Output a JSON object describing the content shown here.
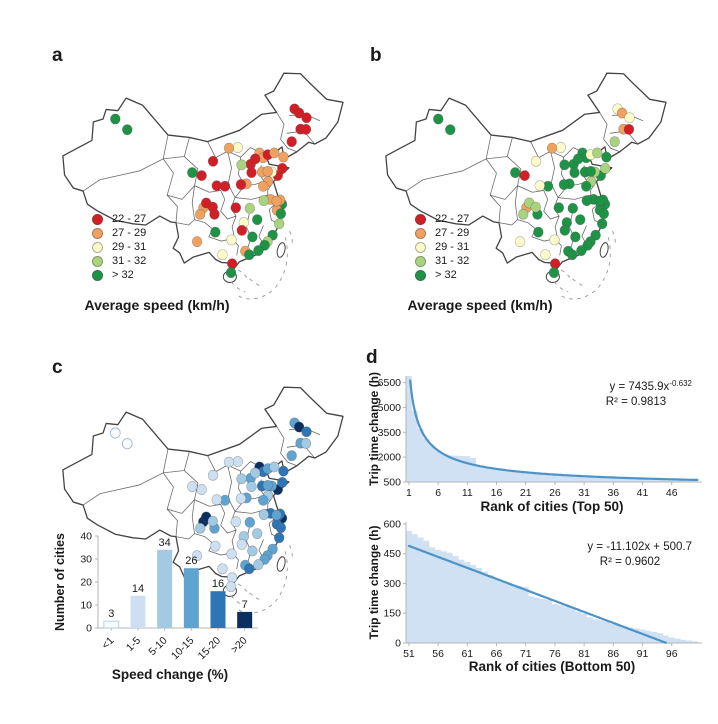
{
  "panels": {
    "a": {
      "label": "a"
    },
    "b": {
      "label": "b"
    },
    "c": {
      "label": "c"
    },
    "d": {
      "label": "d"
    }
  },
  "maps": {
    "caption": "Average speed (km/h)",
    "speed_legend": {
      "labels": [
        "22 - 27",
        "27 - 29",
        "29 - 31",
        "31 - 32",
        "> 32"
      ],
      "colors": [
        "#d21f26",
        "#f0a15f",
        "#fcfccb",
        "#a9d37e",
        "#1e9346"
      ]
    },
    "blues_palette": [
      "#f7fbfe",
      "#cddff0",
      "#a2cae2",
      "#5fa4d0",
      "#2e75b5",
      "#0b3060"
    ],
    "cities": [
      [
        19.4,
        17.8,
        4,
        4,
        0
      ],
      [
        23.6,
        21.4,
        4,
        4,
        0
      ],
      [
        82.3,
        14.4,
        0,
        2,
        3
      ],
      [
        83.9,
        15.8,
        0,
        1,
        5
      ],
      [
        86.5,
        17.4,
        0,
        2,
        4
      ],
      [
        84.4,
        21.2,
        0,
        1,
        3
      ],
      [
        86.3,
        21.3,
        0,
        0,
        2
      ],
      [
        81.3,
        25.4,
        0,
        3,
        3
      ],
      [
        78.4,
        30.6,
        1,
        4,
        4
      ],
      [
        70,
        29.2,
        1,
        4,
        5
      ],
      [
        71.3,
        30.8,
        1,
        4,
        4
      ],
      [
        72.9,
        29.8,
        0,
        2,
        3
      ],
      [
        75.2,
        29.2,
        1,
        3,
        2
      ],
      [
        66.9,
        33,
        0,
        4,
        3
      ],
      [
        68.5,
        31.2,
        0,
        4,
        2
      ],
      [
        62.4,
        27.4,
        2,
        2,
        1
      ],
      [
        59.3,
        27.6,
        1,
        1,
        1
      ],
      [
        63.7,
        33.2,
        3,
        4,
        2
      ],
      [
        70.9,
        35.6,
        1,
        4,
        4
      ],
      [
        76.4,
        36.8,
        0,
        4,
        5
      ],
      [
        78,
        34.4,
        0,
        3,
        4
      ],
      [
        74.3,
        35.6,
        2,
        3,
        3
      ],
      [
        73,
        38.8,
        1,
        3,
        2
      ],
      [
        65.4,
        39.6,
        1,
        4,
        3
      ],
      [
        63.5,
        39.8,
        0,
        4,
        1
      ],
      [
        71.3,
        40.4,
        1,
        4,
        3
      ],
      [
        57.9,
        40.4,
        0,
        4,
        3
      ],
      [
        55,
        40.2,
        0,
        2,
        1
      ],
      [
        49.7,
        36.8,
        0,
        0,
        1
      ],
      [
        46.4,
        35.8,
        4,
        4,
        1
      ],
      [
        53.7,
        32,
        0,
        2,
        1
      ],
      [
        73.9,
        44.8,
        1,
        4,
        4
      ],
      [
        77.9,
        46.4,
        4,
        4,
        5
      ],
      [
        76.3,
        45.8,
        1,
        4,
        4
      ],
      [
        76.1,
        48.4,
        1,
        4,
        4
      ],
      [
        77.5,
        49.6,
        4,
        4,
        4
      ],
      [
        76.9,
        53,
        3,
        4,
        4
      ],
      [
        71.5,
        45.2,
        3,
        4,
        2
      ],
      [
        66.6,
        47.8,
        3,
        4,
        3
      ],
      [
        61.7,
        47.6,
        0,
        4,
        1
      ],
      [
        64.5,
        52.6,
        2,
        4,
        2
      ],
      [
        63.8,
        55.2,
        0,
        4,
        1
      ],
      [
        69.2,
        51.6,
        4,
        4,
        2
      ],
      [
        67.5,
        57.4,
        4,
        4,
        2
      ],
      [
        74.6,
        56.8,
        4,
        4,
        3
      ],
      [
        72.8,
        59,
        3,
        4,
        3
      ],
      [
        71.8,
        60.2,
        4,
        4,
        3
      ],
      [
        69.6,
        62,
        4,
        4,
        2
      ],
      [
        65,
        62.2,
        1,
        4,
        3
      ],
      [
        66.4,
        63.4,
        4,
        4,
        4
      ],
      [
        57,
        63.4,
        2,
        2,
        1
      ],
      [
        60.2,
        58.4,
        2,
        2,
        1
      ],
      [
        60.4,
        66.4,
        0,
        0,
        1
      ],
      [
        60,
        69.4,
        4,
        4,
        1
      ],
      [
        48.1,
        59,
        1,
        2,
        1
      ],
      [
        54.5,
        55.8,
        4,
        4,
        1
      ],
      [
        54.2,
        49.8,
        0,
        4,
        3
      ],
      [
        50.3,
        47.6,
        1,
        1,
        5
      ],
      [
        51.3,
        46,
        0,
        3,
        5
      ],
      [
        49.2,
        49.8,
        1,
        3,
        2
      ],
      [
        53.6,
        47.4,
        0,
        3,
        2
      ],
      [
        67.2,
        35.8,
        0,
        4,
        2
      ],
      [
        72.9,
        35.4,
        1,
        4,
        3
      ],
      [
        77.2,
        45,
        1,
        4,
        4
      ],
      [
        76,
        45.4,
        1,
        4,
        3
      ]
    ]
  },
  "chart_data": [
    {
      "type": "bar",
      "panel": "c-inset",
      "categories": [
        "<1",
        "1-5",
        "5-10",
        "10-15",
        "15-20",
        ">20"
      ],
      "values": [
        3,
        14,
        34,
        26,
        16,
        7
      ],
      "xlabel": "Speed change (%)",
      "ylabel": "Number of cities",
      "yticks": [
        0,
        10,
        20,
        30,
        40
      ],
      "ylim": [
        0,
        40
      ],
      "bar_colors": [
        "#f7fbfe",
        "#cddff0",
        "#a2cae2",
        "#5fa4d0",
        "#2e75b5",
        "#0b3060"
      ]
    },
    {
      "type": "area",
      "panel": "d-top",
      "x_start": 1,
      "values": [
        7436,
        4798,
        3709,
        3096,
        2696,
        2410,
        2200,
        2105,
        2090,
        2075,
        2060,
        1950,
        1460,
        1420,
        1390,
        1340,
        1290,
        1245,
        1205,
        1168,
        1132,
        1100,
        1070,
        1042,
        1016,
        992,
        969,
        948,
        928,
        909,
        891,
        874,
        858,
        843,
        828,
        814,
        801,
        788,
        776,
        764,
        753,
        742,
        732,
        722,
        712,
        703,
        694,
        686,
        678,
        670
      ],
      "fit": {
        "type": "power",
        "a": 7435.9,
        "b": -0.632,
        "x_offset": 0
      },
      "equation": {
        "base": "y = 7435.9x",
        "sup": "-0.632"
      },
      "r2": "R² = 0.9813",
      "xlabel": "Rank of cities (Top 50)",
      "ylabel": "Trip time change (h)",
      "yticks": [
        500,
        2000,
        3500,
        5000,
        6500
      ],
      "ylim": [
        500,
        6900
      ],
      "xticks": [
        1,
        6,
        11,
        16,
        21,
        26,
        31,
        36,
        41,
        46
      ]
    },
    {
      "type": "area",
      "panel": "d-bottom",
      "x_start": 51,
      "values": [
        565,
        548,
        532,
        515,
        482,
        470,
        462,
        455,
        438,
        420,
        408,
        394,
        378,
        360,
        342,
        325,
        308,
        300,
        294,
        288,
        282,
        235,
        228,
        222,
        216,
        196,
        190,
        184,
        178,
        158,
        148,
        130,
        120,
        114,
        108,
        96,
        90,
        84,
        78,
        73,
        68,
        62,
        56,
        50,
        38,
        28,
        22,
        16,
        12,
        8
      ],
      "fit": {
        "type": "linear",
        "m": -11.102,
        "b": 500.7,
        "x_offset": 50
      },
      "equation": {
        "base": "y = -11.102x + 500.7",
        "sup": ""
      },
      "r2": "R² = 0.9602",
      "xlabel": "Rank of cities (Bottom 50)",
      "ylabel": "Trip time change (h)",
      "yticks": [
        0,
        150,
        300,
        450,
        600
      ],
      "ylim": [
        0,
        610
      ],
      "xticks": [
        51,
        56,
        61,
        66,
        71,
        76,
        81,
        86,
        91,
        96
      ]
    }
  ],
  "colors": {
    "area_fill": "#cfe1f2",
    "fit_line": "#4d93c8",
    "axis": "#b5b5b5",
    "map_outline": "#444444",
    "province_line": "#555555",
    "dashed_islands": "#9a9a9a"
  }
}
